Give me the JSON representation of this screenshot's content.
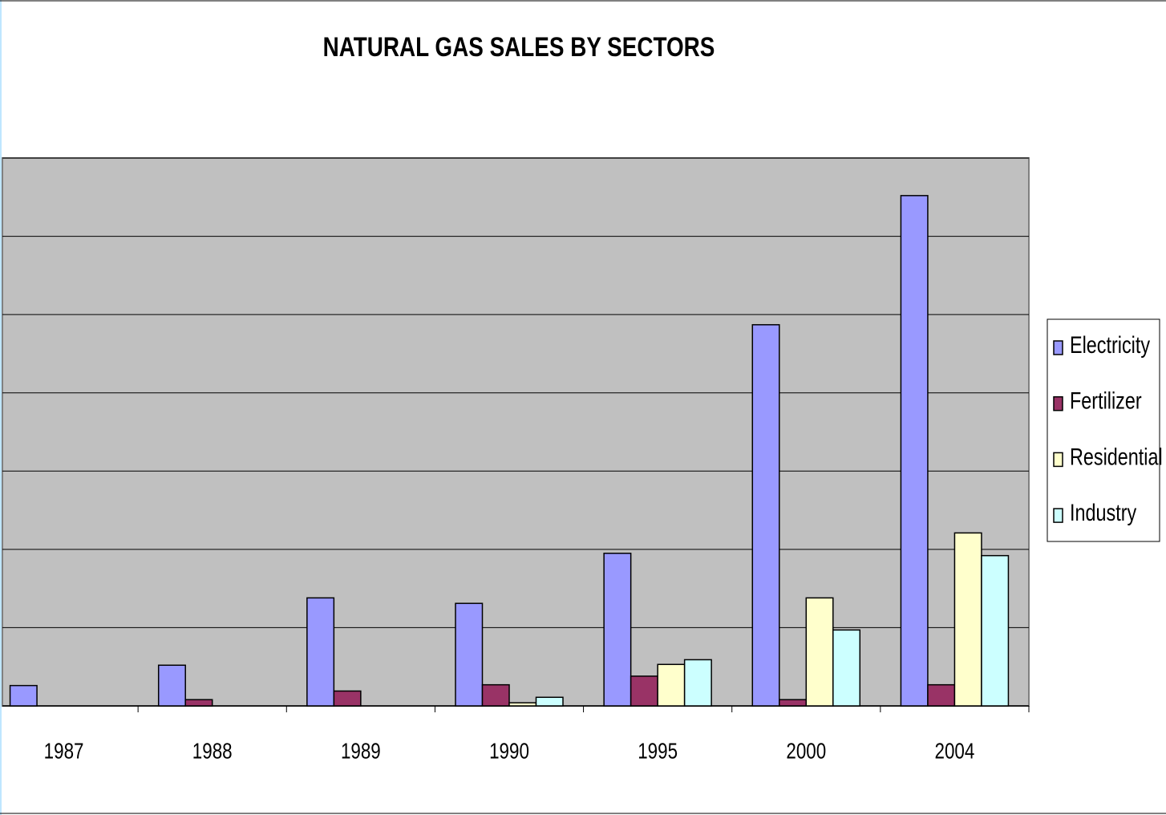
{
  "chart_data": {
    "type": "bar",
    "title": "NATURAL GAS SALES BY SECTORS",
    "categories": [
      "1987",
      "1988",
      "1989",
      "1990",
      "1995",
      "2000",
      "2004"
    ],
    "series": [
      {
        "name": "Electricity",
        "color": "#9999ff",
        "values": [
          0.26,
          0.52,
          1.38,
          1.31,
          1.95,
          4.87,
          6.52
        ]
      },
      {
        "name": "Fertilizer",
        "color": "#993366",
        "values": [
          0,
          0.08,
          0.19,
          0.27,
          0.38,
          0.08,
          0.27
        ]
      },
      {
        "name": "Residential",
        "color": "#ffffcc",
        "values": [
          0,
          0,
          0,
          0.04,
          0.53,
          1.38,
          2.21
        ]
      },
      {
        "name": "Industry",
        "color": "#ccffff",
        "values": [
          0,
          0,
          0,
          0.11,
          0.59,
          0.97,
          1.92
        ]
      }
    ],
    "ylim": [
      0,
      7
    ],
    "yticks": [
      0,
      1,
      2,
      3,
      4,
      5,
      6,
      7
    ],
    "grid": true,
    "legend": "right"
  }
}
